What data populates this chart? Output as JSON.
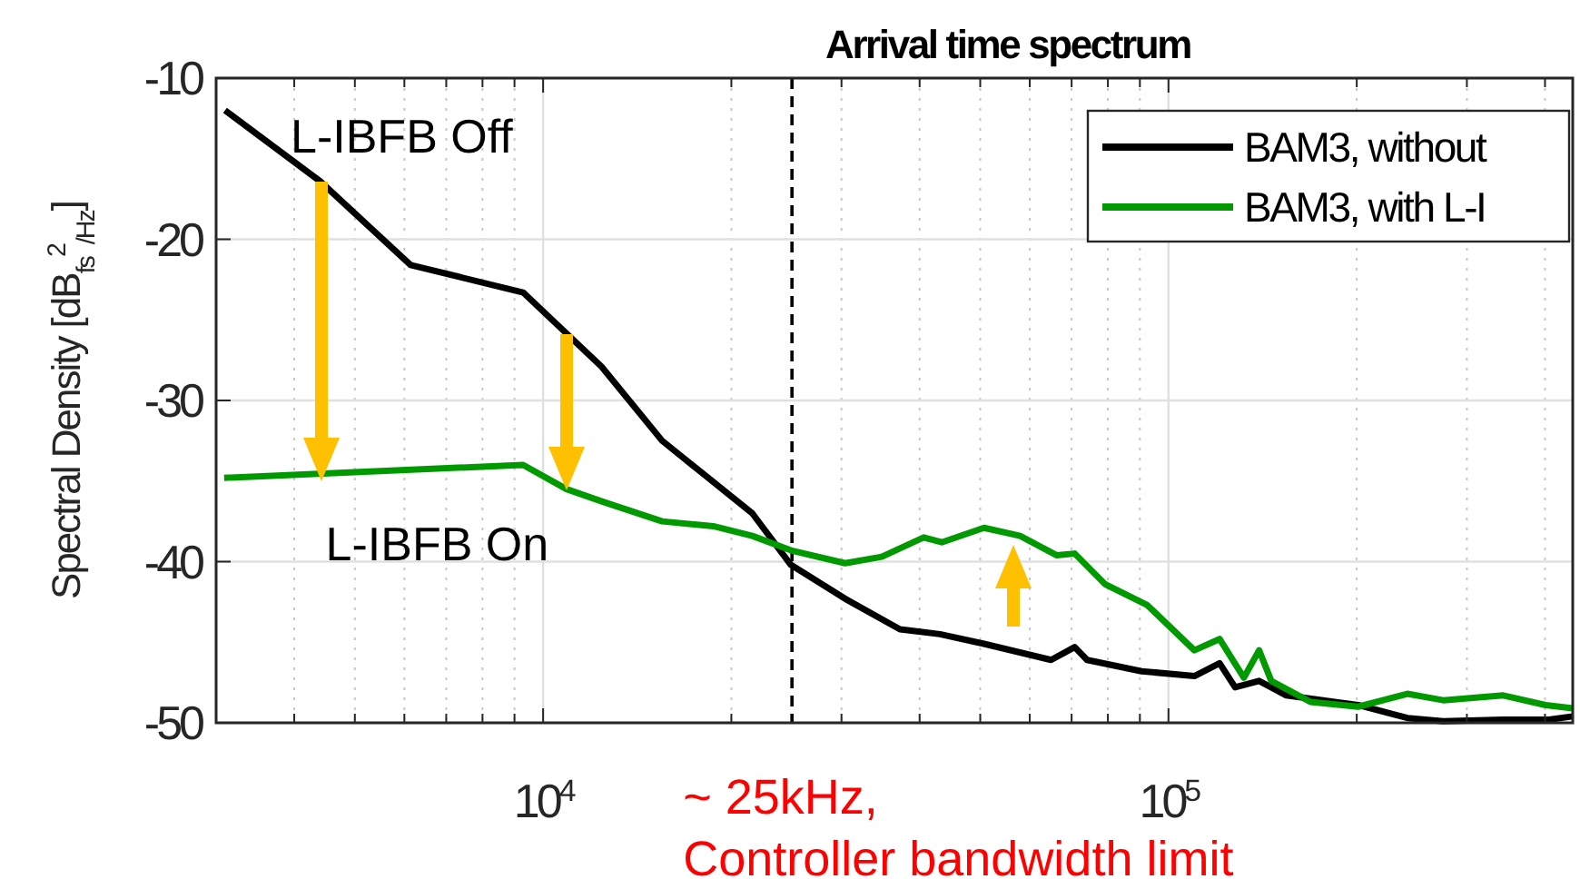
{
  "chart_data": {
    "type": "line",
    "title": "Arrival time spectrum",
    "ylabel": "Spectral Density [dB$_{fs}$$^{2}$$_{/Hz}$]",
    "log": "x",
    "grid": true,
    "legend": "top right",
    "line_style": "solid",
    "marker": "none",
    "xlim": [
      3000,
      443000
    ],
    "ylim": [
      -50,
      -10
    ],
    "xticks": [
      {
        "value": 10000,
        "label": "10$^{4}$"
      },
      {
        "value": 100000,
        "label": "10$^{5}$"
      }
    ],
    "yticks": [
      -50,
      -40,
      -30,
      -20,
      -10
    ],
    "ref_lines": [
      {
        "axis": "x",
        "value": 25000,
        "label": "~ 25kHz,\nController bandwidth limit",
        "color": "#000000",
        "line_style": "dashed"
      }
    ],
    "annotations": [
      "L-IBFB Off",
      {
        "text": "L-IBFB On",
        "x": 4400,
        "y": -34.6
      }
    ],
    "series": [
      {
        "name": "BAM3, without",
        "color": "#000000",
        "x": [
          3100,
          4400,
          6140,
          9290,
          12400,
          15500,
          21600,
          24900,
          30400,
          37200,
          43100,
          50700,
          64900,
          70800,
          74100,
          90600,
          110000,
          120700,
          127800,
          139600,
          154300,
          201000,
          241000,
          275000,
          343000,
          406000,
          443000
        ],
        "values": [
          -12.0,
          -16.4,
          -21.6,
          -23.3,
          -27.9,
          -32.5,
          -37.0,
          -40.2,
          -42.3,
          -44.2,
          -44.5,
          -45.1,
          -46.1,
          -45.3,
          -46.1,
          -46.8,
          -47.1,
          -46.3,
          -47.8,
          -47.4,
          -48.3,
          -48.9,
          -49.7,
          -49.9,
          -49.8,
          -49.8,
          -49.6
        ]
      },
      {
        "name": "BAM3, with L-I",
        "color": "#009900",
        "x": [
          3090,
          9290,
          10900,
          12500,
          15500,
          18700,
          21600,
          24900,
          30400,
          34800,
          40600,
          43400,
          50700,
          57900,
          66200,
          70800,
          79200,
          92500,
          110000,
          120700,
          132000,
          139600,
          146000,
          168600,
          201000,
          241000,
          275000,
          343000,
          401000,
          443000
        ],
        "values": [
          -34.8,
          -34.0,
          -35.5,
          -36.3,
          -37.5,
          -37.8,
          -38.4,
          -39.3,
          -40.1,
          -39.7,
          -38.5,
          -38.8,
          -37.9,
          -38.4,
          -39.6,
          -39.5,
          -41.4,
          -42.7,
          -45.5,
          -44.8,
          -47.2,
          -45.5,
          -47.4,
          -48.7,
          -49.0,
          -48.2,
          -48.6,
          -48.3,
          -48.9,
          -49.1
        ]
      }
    ]
  }
}
